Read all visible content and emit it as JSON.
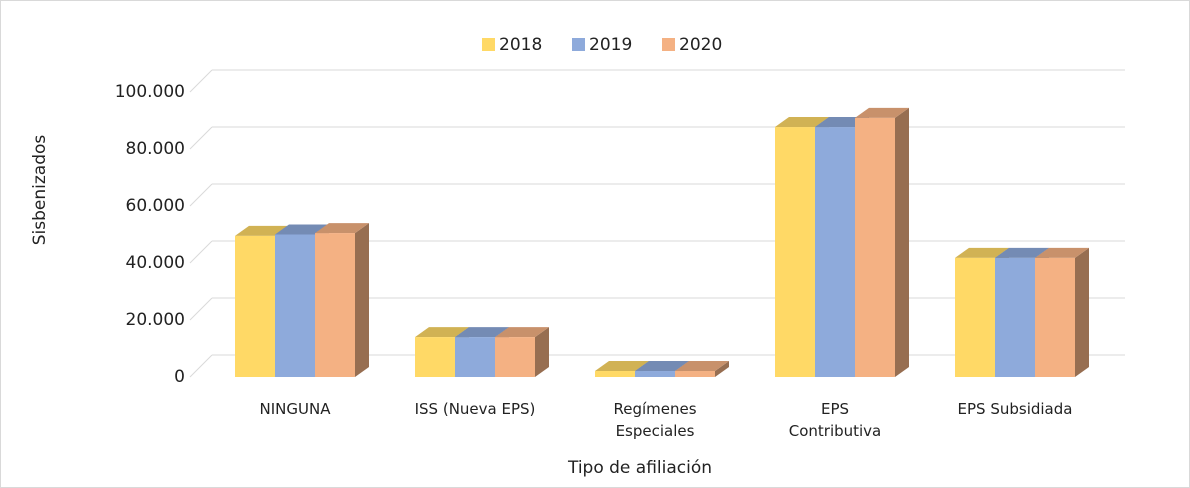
{
  "chart_data": {
    "type": "bar3d",
    "x_label": "Tipo de afiliación",
    "y_label": "Sisbenizados",
    "categories": [
      "NINGUNA",
      "ISS (Nueva EPS)",
      "Regímenes\nEspeciales",
      "EPS\nContributiva",
      "EPS Subsidiada"
    ],
    "series": [
      {
        "name": "2018",
        "color": "#ffd966",
        "values": [
          49500,
          14000,
          2100,
          87700,
          41800
        ]
      },
      {
        "name": "2019",
        "color": "#8eaadb",
        "values": [
          50000,
          14000,
          2100,
          87700,
          41800
        ]
      },
      {
        "name": "2020",
        "color": "#f4b183",
        "values": [
          50500,
          14000,
          2100,
          90900,
          41800
        ]
      }
    ],
    "ylim": [
      0,
      100000
    ],
    "yticks": [
      0,
      {
        "value": 20000,
        "label": "20.000"
      },
      {
        "value": 40000,
        "label": "40.000"
      },
      {
        "value": 60000,
        "label": "60.000"
      },
      {
        "value": 80000,
        "label": "80.000"
      },
      {
        "value": 100000,
        "label": "100.000"
      }
    ],
    "grid": true,
    "legend": "top"
  }
}
